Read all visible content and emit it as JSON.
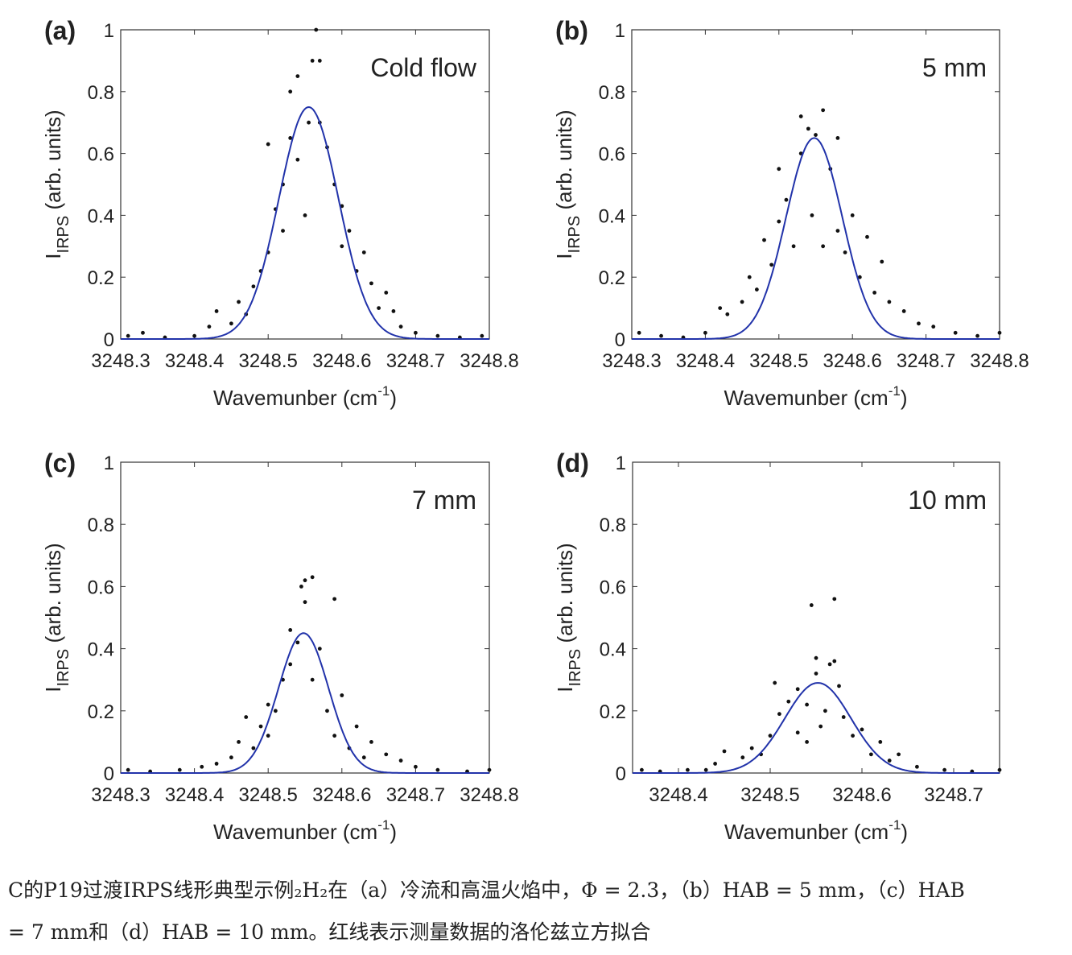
{
  "chart_data": [
    {
      "type": "scatter",
      "panel_label": "(a)",
      "annotation": "Cold flow",
      "xlabel": "Wavemunber (cm",
      "xlabel_sup": "-1",
      "xlabel_end": ")",
      "ylabel_main": "I",
      "ylabel_sub": "IRPS",
      "ylabel_rest": " (arb. units)",
      "xlim": [
        3248.3,
        3248.8
      ],
      "ylim": [
        0,
        1
      ],
      "xticks": [
        "3248.3",
        "3248.4",
        "3248.5",
        "3248.6",
        "3248.7",
        "3248.8"
      ],
      "xtick_values": [
        3248.3,
        3248.4,
        3248.5,
        3248.6,
        3248.7,
        3248.8
      ],
      "yticks": [
        "0",
        "0.2",
        "0.4",
        "0.6",
        "0.8",
        "1"
      ],
      "ytick_values": [
        0,
        0.2,
        0.4,
        0.6,
        0.8,
        1
      ],
      "fit": {
        "amplitude": 0.75,
        "center": 3248.555,
        "fwhm": 0.095,
        "color": "#2233aa"
      },
      "points": [
        [
          3248.31,
          0.01
        ],
        [
          3248.33,
          0.02
        ],
        [
          3248.36,
          0.005
        ],
        [
          3248.4,
          0.01
        ],
        [
          3248.42,
          0.04
        ],
        [
          3248.43,
          0.09
        ],
        [
          3248.45,
          0.05
        ],
        [
          3248.46,
          0.12
        ],
        [
          3248.47,
          0.08
        ],
        [
          3248.48,
          0.17
        ],
        [
          3248.49,
          0.22
        ],
        [
          3248.5,
          0.28
        ],
        [
          3248.5,
          0.63
        ],
        [
          3248.51,
          0.42
        ],
        [
          3248.52,
          0.5
        ],
        [
          3248.52,
          0.35
        ],
        [
          3248.53,
          0.65
        ],
        [
          3248.53,
          0.8
        ],
        [
          3248.54,
          0.58
        ],
        [
          3248.54,
          0.85
        ],
        [
          3248.55,
          0.4
        ],
        [
          3248.555,
          0.7
        ],
        [
          3248.56,
          0.9
        ],
        [
          3248.565,
          1.0
        ],
        [
          3248.57,
          0.9
        ],
        [
          3248.57,
          0.7
        ],
        [
          3248.58,
          0.62
        ],
        [
          3248.59,
          0.5
        ],
        [
          3248.6,
          0.43
        ],
        [
          3248.6,
          0.3
        ],
        [
          3248.61,
          0.35
        ],
        [
          3248.62,
          0.22
        ],
        [
          3248.63,
          0.28
        ],
        [
          3248.64,
          0.18
        ],
        [
          3248.65,
          0.1
        ],
        [
          3248.66,
          0.15
        ],
        [
          3248.67,
          0.09
        ],
        [
          3248.68,
          0.04
        ],
        [
          3248.7,
          0.02
        ],
        [
          3248.73,
          0.01
        ],
        [
          3248.76,
          0.005
        ],
        [
          3248.79,
          0.01
        ]
      ]
    },
    {
      "type": "scatter",
      "panel_label": "(b)",
      "annotation": "5 mm",
      "xlabel": "Wavemunber (cm",
      "xlabel_sup": "-1",
      "xlabel_end": ")",
      "ylabel_main": "I",
      "ylabel_sub": "IRPS",
      "ylabel_rest": " (arb. units)",
      "xlim": [
        3248.3,
        3248.8
      ],
      "ylim": [
        0,
        1
      ],
      "xticks": [
        "3248.3",
        "3248.4",
        "3248.5",
        "3248.6",
        "3248.7",
        "3248.8"
      ],
      "xtick_values": [
        3248.3,
        3248.4,
        3248.5,
        3248.6,
        3248.7,
        3248.8
      ],
      "yticks": [
        "0",
        "0.2",
        "0.4",
        "0.6",
        "0.8",
        "1"
      ],
      "ytick_values": [
        0,
        0.2,
        0.4,
        0.6,
        0.8,
        1
      ],
      "fit": {
        "amplitude": 0.65,
        "center": 3248.548,
        "fwhm": 0.09,
        "color": "#2233aa"
      },
      "points": [
        [
          3248.31,
          0.02
        ],
        [
          3248.34,
          0.01
        ],
        [
          3248.37,
          0.005
        ],
        [
          3248.4,
          0.02
        ],
        [
          3248.42,
          0.1
        ],
        [
          3248.43,
          0.08
        ],
        [
          3248.45,
          0.12
        ],
        [
          3248.46,
          0.2
        ],
        [
          3248.47,
          0.16
        ],
        [
          3248.48,
          0.32
        ],
        [
          3248.49,
          0.24
        ],
        [
          3248.5,
          0.38
        ],
        [
          3248.5,
          0.55
        ],
        [
          3248.51,
          0.45
        ],
        [
          3248.52,
          0.3
        ],
        [
          3248.53,
          0.6
        ],
        [
          3248.53,
          0.72
        ],
        [
          3248.54,
          0.68
        ],
        [
          3248.545,
          0.4
        ],
        [
          3248.55,
          0.66
        ],
        [
          3248.56,
          0.74
        ],
        [
          3248.56,
          0.3
        ],
        [
          3248.57,
          0.55
        ],
        [
          3248.58,
          0.65
        ],
        [
          3248.58,
          0.35
        ],
        [
          3248.59,
          0.28
        ],
        [
          3248.6,
          0.4
        ],
        [
          3248.61,
          0.2
        ],
        [
          3248.62,
          0.33
        ],
        [
          3248.63,
          0.15
        ],
        [
          3248.64,
          0.25
        ],
        [
          3248.65,
          0.12
        ],
        [
          3248.67,
          0.09
        ],
        [
          3248.69,
          0.05
        ],
        [
          3248.71,
          0.04
        ],
        [
          3248.74,
          0.02
        ],
        [
          3248.77,
          0.01
        ],
        [
          3248.8,
          0.02
        ]
      ]
    },
    {
      "type": "scatter",
      "panel_label": "(c)",
      "annotation": "7 mm",
      "xlabel": "Wavemunber (cm",
      "xlabel_sup": "-1",
      "xlabel_end": ")",
      "ylabel_main": "I",
      "ylabel_sub": "IRPS",
      "ylabel_rest": " (arb. units)",
      "xlim": [
        3248.3,
        3248.8
      ],
      "ylim": [
        0,
        1
      ],
      "xticks": [
        "3248.3",
        "3248.4",
        "3248.5",
        "3248.6",
        "3248.7",
        "3248.8"
      ],
      "xtick_values": [
        3248.3,
        3248.4,
        3248.5,
        3248.6,
        3248.7,
        3248.8
      ],
      "yticks": [
        "0",
        "0.2",
        "0.4",
        "0.6",
        "0.8",
        "1"
      ],
      "ytick_values": [
        0,
        0.2,
        0.4,
        0.6,
        0.8,
        1
      ],
      "fit": {
        "amplitude": 0.45,
        "center": 3248.548,
        "fwhm": 0.08,
        "color": "#2233aa"
      },
      "points": [
        [
          3248.31,
          0.01
        ],
        [
          3248.34,
          0.005
        ],
        [
          3248.38,
          0.01
        ],
        [
          3248.41,
          0.02
        ],
        [
          3248.43,
          0.03
        ],
        [
          3248.45,
          0.05
        ],
        [
          3248.46,
          0.1
        ],
        [
          3248.47,
          0.18
        ],
        [
          3248.48,
          0.08
        ],
        [
          3248.49,
          0.15
        ],
        [
          3248.5,
          0.12
        ],
        [
          3248.5,
          0.22
        ],
        [
          3248.51,
          0.2
        ],
        [
          3248.52,
          0.3
        ],
        [
          3248.53,
          0.46
        ],
        [
          3248.53,
          0.35
        ],
        [
          3248.54,
          0.42
        ],
        [
          3248.545,
          0.6
        ],
        [
          3248.55,
          0.62
        ],
        [
          3248.55,
          0.55
        ],
        [
          3248.56,
          0.63
        ],
        [
          3248.56,
          0.3
        ],
        [
          3248.57,
          0.4
        ],
        [
          3248.58,
          0.2
        ],
        [
          3248.59,
          0.56
        ],
        [
          3248.59,
          0.12
        ],
        [
          3248.6,
          0.25
        ],
        [
          3248.61,
          0.08
        ],
        [
          3248.62,
          0.15
        ],
        [
          3248.63,
          0.05
        ],
        [
          3248.64,
          0.1
        ],
        [
          3248.66,
          0.06
        ],
        [
          3248.68,
          0.04
        ],
        [
          3248.7,
          0.02
        ],
        [
          3248.73,
          0.01
        ],
        [
          3248.77,
          0.005
        ],
        [
          3248.8,
          0.01
        ]
      ]
    },
    {
      "type": "scatter",
      "panel_label": "(d)",
      "annotation": "10 mm",
      "xlabel": "Wavemunber (cm",
      "xlabel_sup": "-1",
      "xlabel_end": ")",
      "ylabel_main": "I",
      "ylabel_sub": "IRPS",
      "ylabel_rest": " (arb. units)",
      "xlim": [
        3248.35,
        3248.75
      ],
      "ylim": [
        0,
        1
      ],
      "xticks": [
        "3248.4",
        "3248.5",
        "3248.6",
        "3248.7"
      ],
      "xtick_values": [
        3248.4,
        3248.5,
        3248.6,
        3248.7
      ],
      "yticks": [
        "0",
        "0.2",
        "0.4",
        "0.6",
        "0.8",
        "1"
      ],
      "ytick_values": [
        0,
        0.2,
        0.4,
        0.6,
        0.8,
        1
      ],
      "fit": {
        "amplitude": 0.29,
        "center": 3248.552,
        "fwhm": 0.085,
        "color": "#2233aa"
      },
      "points": [
        [
          3248.36,
          0.01
        ],
        [
          3248.38,
          0.005
        ],
        [
          3248.41,
          0.01
        ],
        [
          3248.43,
          0.01
        ],
        [
          3248.44,
          0.03
        ],
        [
          3248.45,
          0.07
        ],
        [
          3248.47,
          0.05
        ],
        [
          3248.48,
          0.08
        ],
        [
          3248.49,
          0.06
        ],
        [
          3248.5,
          0.12
        ],
        [
          3248.505,
          0.29
        ],
        [
          3248.51,
          0.19
        ],
        [
          3248.52,
          0.23
        ],
        [
          3248.53,
          0.13
        ],
        [
          3248.53,
          0.27
        ],
        [
          3248.54,
          0.1
        ],
        [
          3248.54,
          0.22
        ],
        [
          3248.545,
          0.54
        ],
        [
          3248.55,
          0.37
        ],
        [
          3248.55,
          0.32
        ],
        [
          3248.555,
          0.15
        ],
        [
          3248.56,
          0.2
        ],
        [
          3248.565,
          0.35
        ],
        [
          3248.57,
          0.56
        ],
        [
          3248.57,
          0.36
        ],
        [
          3248.575,
          0.28
        ],
        [
          3248.58,
          0.18
        ],
        [
          3248.59,
          0.12
        ],
        [
          3248.6,
          0.14
        ],
        [
          3248.61,
          0.06
        ],
        [
          3248.62,
          0.1
        ],
        [
          3248.63,
          0.04
        ],
        [
          3248.64,
          0.06
        ],
        [
          3248.66,
          0.02
        ],
        [
          3248.69,
          0.01
        ],
        [
          3248.72,
          0.005
        ],
        [
          3248.75,
          0.01
        ]
      ]
    }
  ],
  "caption": {
    "line1": "C的P19过渡IRPS线形典型示例₂H₂在（a）冷流和高温火焰中，Φ = 2.3，（b）HAB = 5 mm，（c）HAB",
    "line2": "= 7 mm和（d）HAB = 10 mm。红线表示测量数据的洛伦兹立方拟合"
  }
}
